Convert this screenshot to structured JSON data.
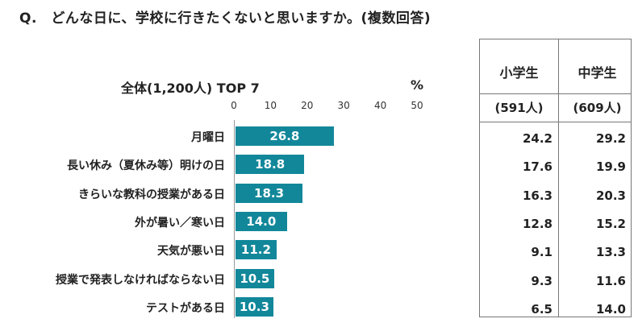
{
  "question": "Q.　どんな日に、学校に行きたくないと思いますか。(複数回答)",
  "chart_data": {
    "type": "bar",
    "orientation": "horizontal",
    "title": "全体(1,200人) TOP 7",
    "unit": "%",
    "xlim": [
      0,
      50
    ],
    "ticks": [
      "0",
      "10",
      "20",
      "30",
      "40",
      "50"
    ],
    "categories": [
      "月曜日",
      "長い休み（夏休み等）明けの日",
      "きらいな教科の授業がある日",
      "外が暑い／寒い日",
      "天気が悪い日",
      "授業で発表しなければならない日",
      "テストがある日"
    ],
    "values": [
      26.8,
      18.8,
      18.3,
      14.0,
      11.2,
      10.5,
      10.3
    ],
    "value_labels": [
      "26.8",
      "18.8",
      "18.3",
      "14.0",
      "11.2",
      "10.5",
      "10.3"
    ],
    "bar_color": "#12879a"
  },
  "table": {
    "headers": [
      "小学生",
      "中学生"
    ],
    "counts": [
      "(591人)",
      "(609人)"
    ],
    "rows": [
      [
        "24.2",
        "29.2"
      ],
      [
        "17.6",
        "19.9"
      ],
      [
        "16.3",
        "20.3"
      ],
      [
        "12.8",
        "15.2"
      ],
      [
        "9.1",
        "13.3"
      ],
      [
        "9.3",
        "11.6"
      ],
      [
        "6.5",
        "14.0"
      ]
    ]
  }
}
